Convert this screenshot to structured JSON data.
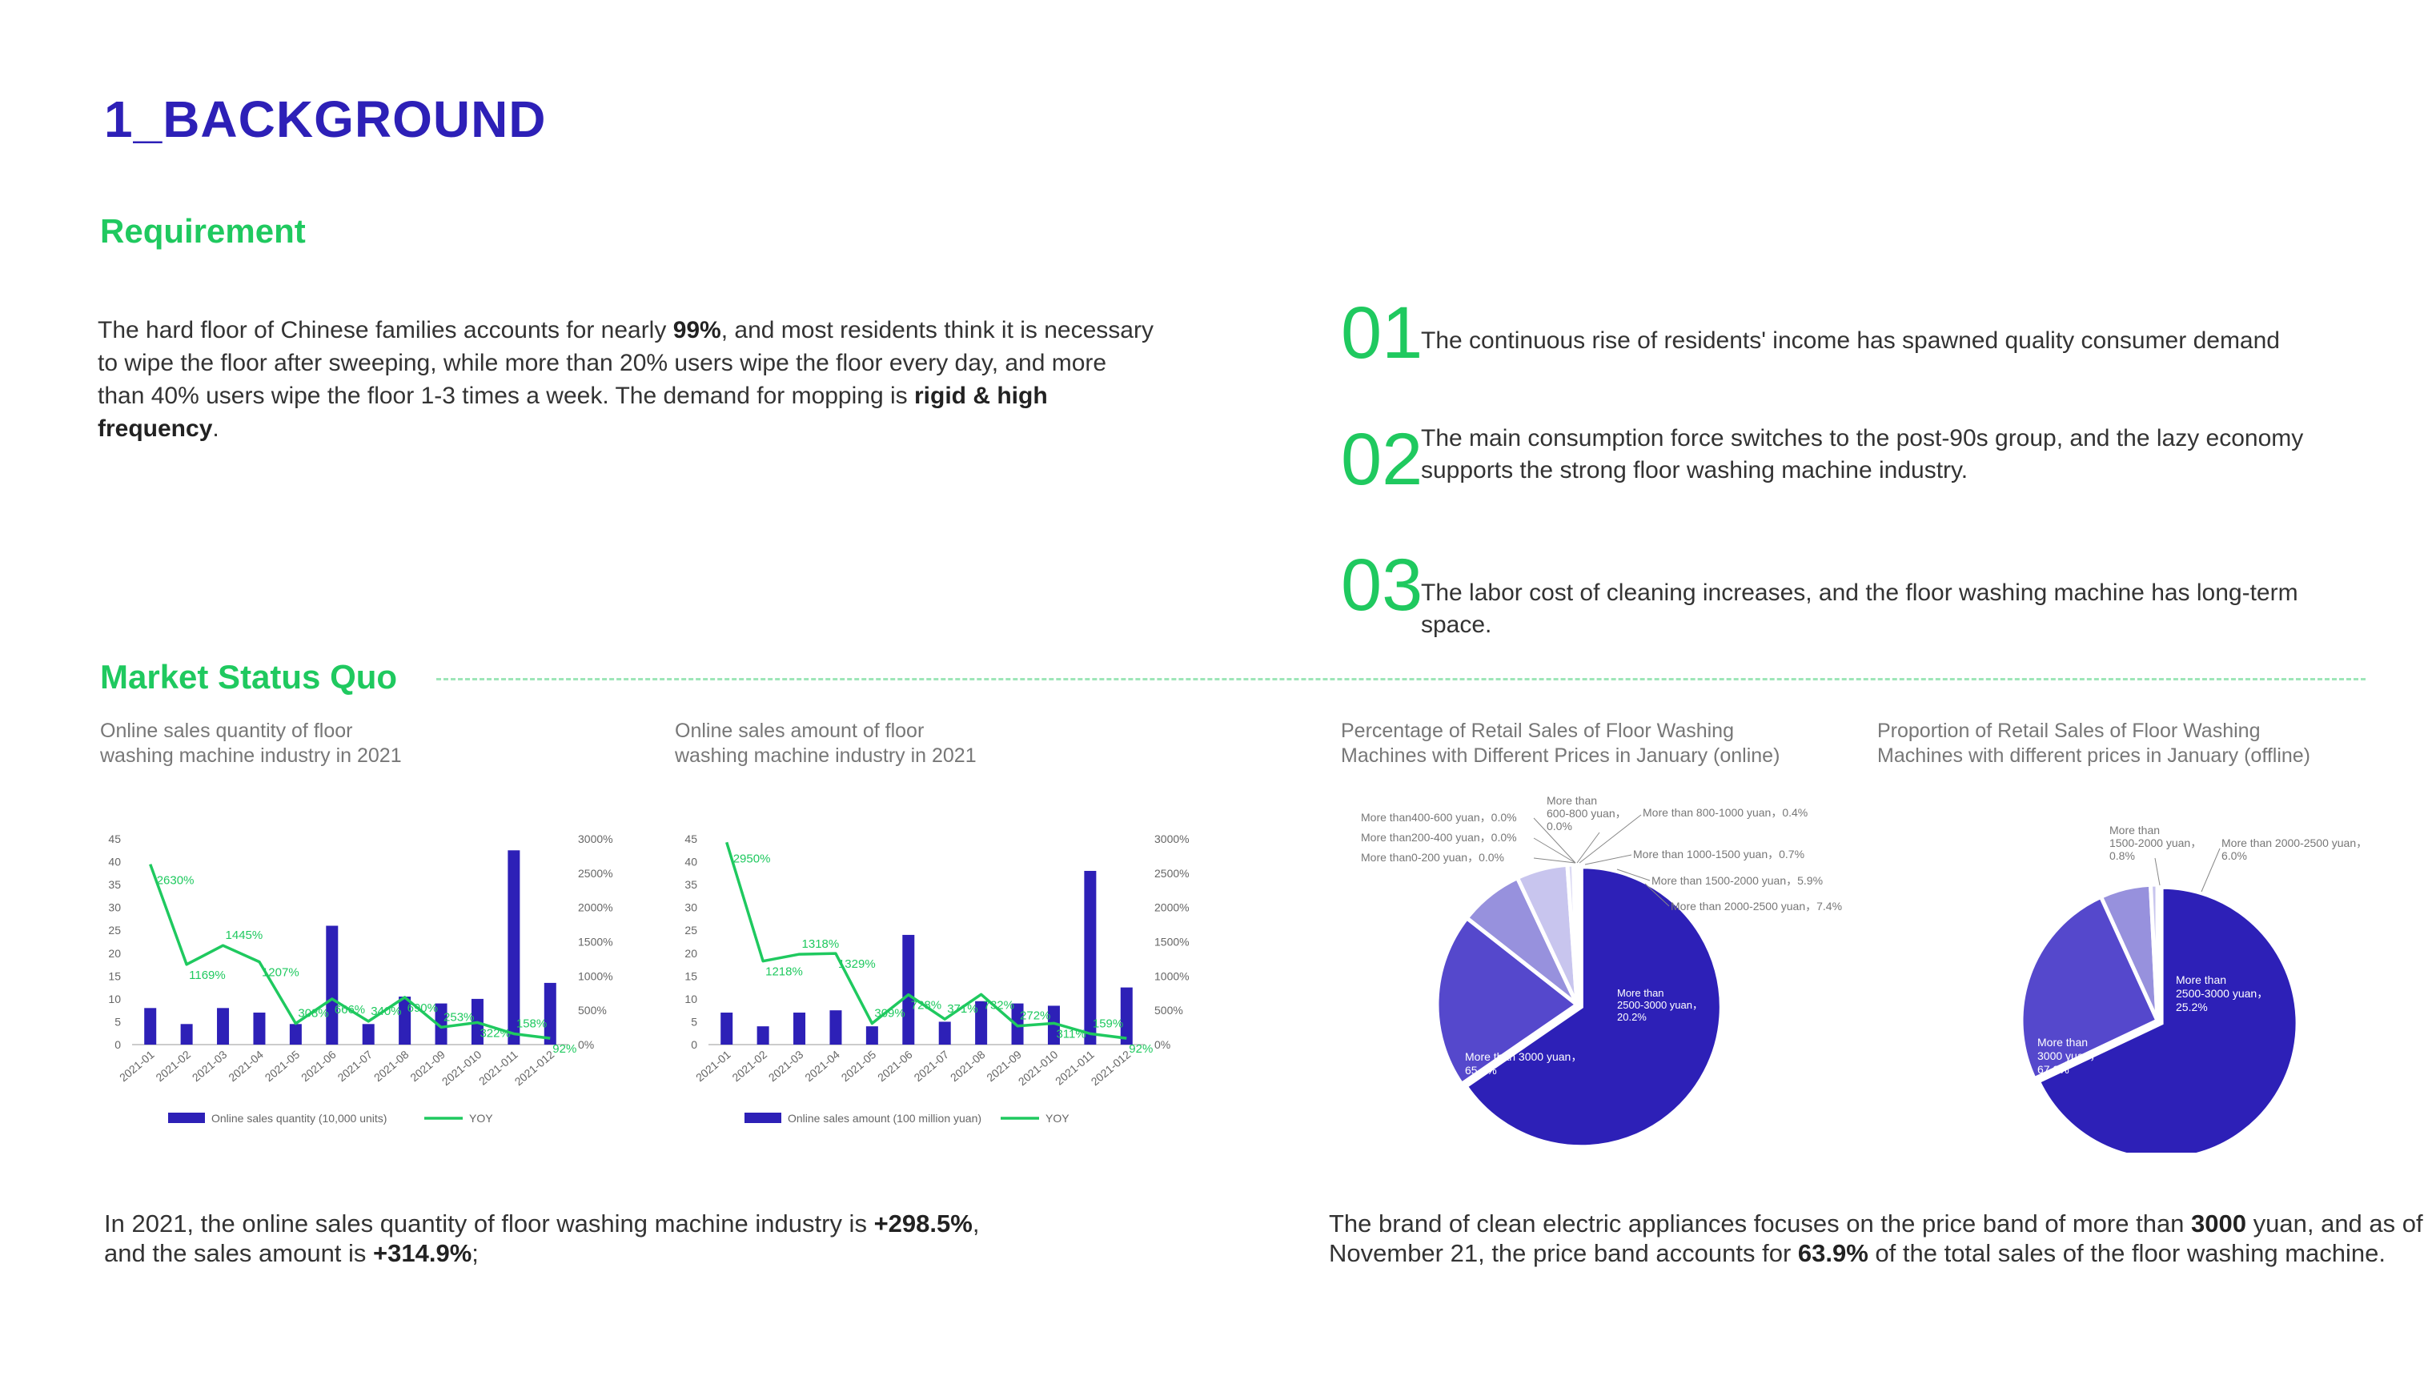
{
  "header": {
    "title": "1_BACKGROUND"
  },
  "requirement": {
    "title": "Requirement",
    "text_parts": {
      "p1": "The hard floor of Chinese families accounts for nearly ",
      "b1": "99%",
      "p2": ", and most residents think it is necessary to wipe the floor after sweeping, while more than 20% users wipe the floor every day, and more than 40% users wipe the floor 1-3 times a week. The demand for mopping is ",
      "b2": "rigid & high frequency",
      "p3": "."
    }
  },
  "points": [
    {
      "number": "01",
      "text": "The continuous rise of residents' income has spawned quality consumer demand"
    },
    {
      "number": "02",
      "text": "The main consumption force switches to the post-90s group, and the lazy economy supports the strong floor washing machine industry."
    },
    {
      "number": "03",
      "text": "The labor cost of cleaning increases, and the floor washing machine has long-term space."
    }
  ],
  "market": {
    "title": "Market Status Quo",
    "summary_left": {
      "p1": "In 2021, the online sales quantity of floor washing machine industry is ",
      "b1": "+298.5%",
      "p2": ",",
      "p3": "and the sales amount is ",
      "b2": "+314.9%",
      "p4": ";"
    },
    "summary_right": {
      "p1": "The brand of clean electric appliances focuses on the price band of more than ",
      "b1": "3000",
      "p2": " yuan, and as of",
      "p3": "November 21, the price band accounts for ",
      "b2": "63.9%",
      "p4": " of the total sales of the floor washing machine."
    }
  },
  "colors": {
    "bar": "#2d20b7",
    "line": "#1fc95f",
    "title": "#2d20b7",
    "accent": "#1fc95f"
  },
  "chart_data": [
    {
      "type": "bar",
      "title_lines": [
        "Online sales quantity of floor",
        "washing machine industry in 2021"
      ],
      "categories": [
        "2021-01",
        "2021-02",
        "2021-03",
        "2021-04",
        "2021-05",
        "2021-06",
        "2021-07",
        "2021-08",
        "2021-09",
        "2021-010",
        "2021-011",
        "2021-012"
      ],
      "series": [
        {
          "name": "Online sales quantity (10,000 units)",
          "type": "bar",
          "axis": "left",
          "values": [
            8,
            4.5,
            8,
            7,
            4.5,
            26,
            4.5,
            10.5,
            9,
            10,
            42.5,
            13.5
          ]
        },
        {
          "name": "YOY",
          "type": "line",
          "axis": "right",
          "values": [
            2630,
            1169,
            1445,
            1207,
            308,
            666,
            340,
            690,
            253,
            322,
            158,
            92
          ]
        }
      ],
      "point_labels": [
        "2630%",
        "1169%",
        "1445%",
        "1207%",
        "308%",
        "666%",
        "340%",
        "690%",
        "253%",
        "322%",
        "158%",
        "92%"
      ],
      "y_left_ticks": [
        0,
        5,
        10,
        15,
        20,
        25,
        30,
        35,
        40,
        45
      ],
      "y_right_ticks": [
        "0%",
        "500%",
        "1000%",
        "1500%",
        "2000%",
        "2500%",
        "3000%"
      ],
      "ylim_left": [
        0,
        45
      ],
      "ylim_right": [
        0,
        3000
      ]
    },
    {
      "type": "bar",
      "title_lines": [
        "Online sales amount of floor",
        "washing machine industry in 2021"
      ],
      "categories": [
        "2021-01",
        "2021-02",
        "2021-03",
        "2021-04",
        "2021-05",
        "2021-06",
        "2021-07",
        "2021-08",
        "2021-09",
        "2021-010",
        "2021-011",
        "2021-012"
      ],
      "series": [
        {
          "name": "Online sales amount (100 million yuan)",
          "type": "bar",
          "axis": "left",
          "values": [
            7,
            4,
            7,
            7.5,
            4,
            24,
            5,
            9.5,
            9,
            8.5,
            38,
            12.5
          ]
        },
        {
          "name": "YOY",
          "type": "line",
          "axis": "right",
          "values": [
            2950,
            1218,
            1318,
            1329,
            309,
            728,
            371,
            732,
            272,
            311,
            159,
            92
          ]
        }
      ],
      "point_labels": [
        "2950%",
        "1218%",
        "1318%",
        "1329%",
        "309%",
        "728%",
        "371%",
        "732%",
        "272%",
        "311%",
        "159%",
        "92%"
      ],
      "y_left_ticks": [
        0,
        5,
        10,
        15,
        20,
        25,
        30,
        35,
        40,
        45
      ],
      "y_right_ticks": [
        "0%",
        "500%",
        "1000%",
        "1500%",
        "2000%",
        "2500%",
        "3000%"
      ],
      "ylim_left": [
        0,
        45
      ],
      "ylim_right": [
        0,
        3000
      ]
    },
    {
      "type": "pie",
      "title_lines": [
        "Percentage of Retail Sales of Floor Washing",
        "Machines with Different Prices in January (online)"
      ],
      "slices": [
        {
          "label": "More than 3000 yuan，65.4%",
          "value": 65.4,
          "color": "#2d20b7"
        },
        {
          "label": "More than 2500-3000 yuan，20.2%",
          "value": 20.2,
          "color": "#5548cc"
        },
        {
          "label": "More than 2000-2500 yuan，7.4%",
          "value": 7.4,
          "color": "#9791dd"
        },
        {
          "label": "More than 1500-2000 yuan，5.9%",
          "value": 5.9,
          "color": "#c8c5ee"
        },
        {
          "label": "More than 1000-1500 yuan，0.7%",
          "value": 0.7,
          "color": "#dcdaf4"
        },
        {
          "label": "More than 800-1000 yuan，0.4%",
          "value": 0.4,
          "color": "#e6e5f7"
        },
        {
          "label": "More than 600-800 yuan，0.0%",
          "value": 0.0,
          "color": "#eeeefa"
        },
        {
          "label": "More than400-600 yuan，0.0%",
          "value": 0.0,
          "color": "#eeeefa"
        },
        {
          "label": "More than200-400 yuan，0.0%",
          "value": 0.0,
          "color": "#eeeefa"
        },
        {
          "label": "More than0-200 yuan，0.0%",
          "value": 0.0,
          "color": "#eeeefa"
        }
      ],
      "inside_labels": [
        [
          "More than 3000 yuan，",
          "65.4%"
        ],
        [
          "More than",
          "2500-3000 yuan，",
          "20.2%"
        ]
      ],
      "outside_labels": [
        [
          "More than",
          "600-800 yuan，",
          "0.0%"
        ],
        [
          "More than 800-1000 yuan，0.4%"
        ],
        [
          "More than400-600 yuan，0.0%"
        ],
        [
          "More than200-400 yuan，0.0%"
        ],
        [
          "More than0-200 yuan，0.0%"
        ],
        [
          "More than 1000-1500 yuan，0.7%"
        ],
        [
          "More than 1500-2000 yuan，5.9%"
        ],
        [
          "More than 2000-2500 yuan，7.4%"
        ]
      ]
    },
    {
      "type": "pie",
      "title_lines": [
        "Proportion of Retail Sales of Floor Washing",
        "Machines with different prices in January (offline)"
      ],
      "slices": [
        {
          "label": "More than 3000 yuan，67.9%",
          "value": 67.9,
          "color": "#2d20b7"
        },
        {
          "label": "More than 2500-3000 yuan，25.2%",
          "value": 25.2,
          "color": "#5548cc"
        },
        {
          "label": "More than 2000-2500 yuan，6.0%",
          "value": 6.0,
          "color": "#9791dd"
        },
        {
          "label": "More than 1500-2000 yuan，0.8%",
          "value": 0.8,
          "color": "#c8c5ee"
        }
      ],
      "inside_labels": [
        [
          "More than",
          "3000 yuan，",
          "67.9%"
        ],
        [
          "More than",
          "2500-3000 yuan，",
          "25.2%"
        ]
      ],
      "outside_labels": [
        [
          "More than",
          "1500-2000 yuan，",
          "0.8%"
        ],
        [
          "More than 2000-2500 yuan，",
          "6.0%"
        ]
      ]
    }
  ]
}
